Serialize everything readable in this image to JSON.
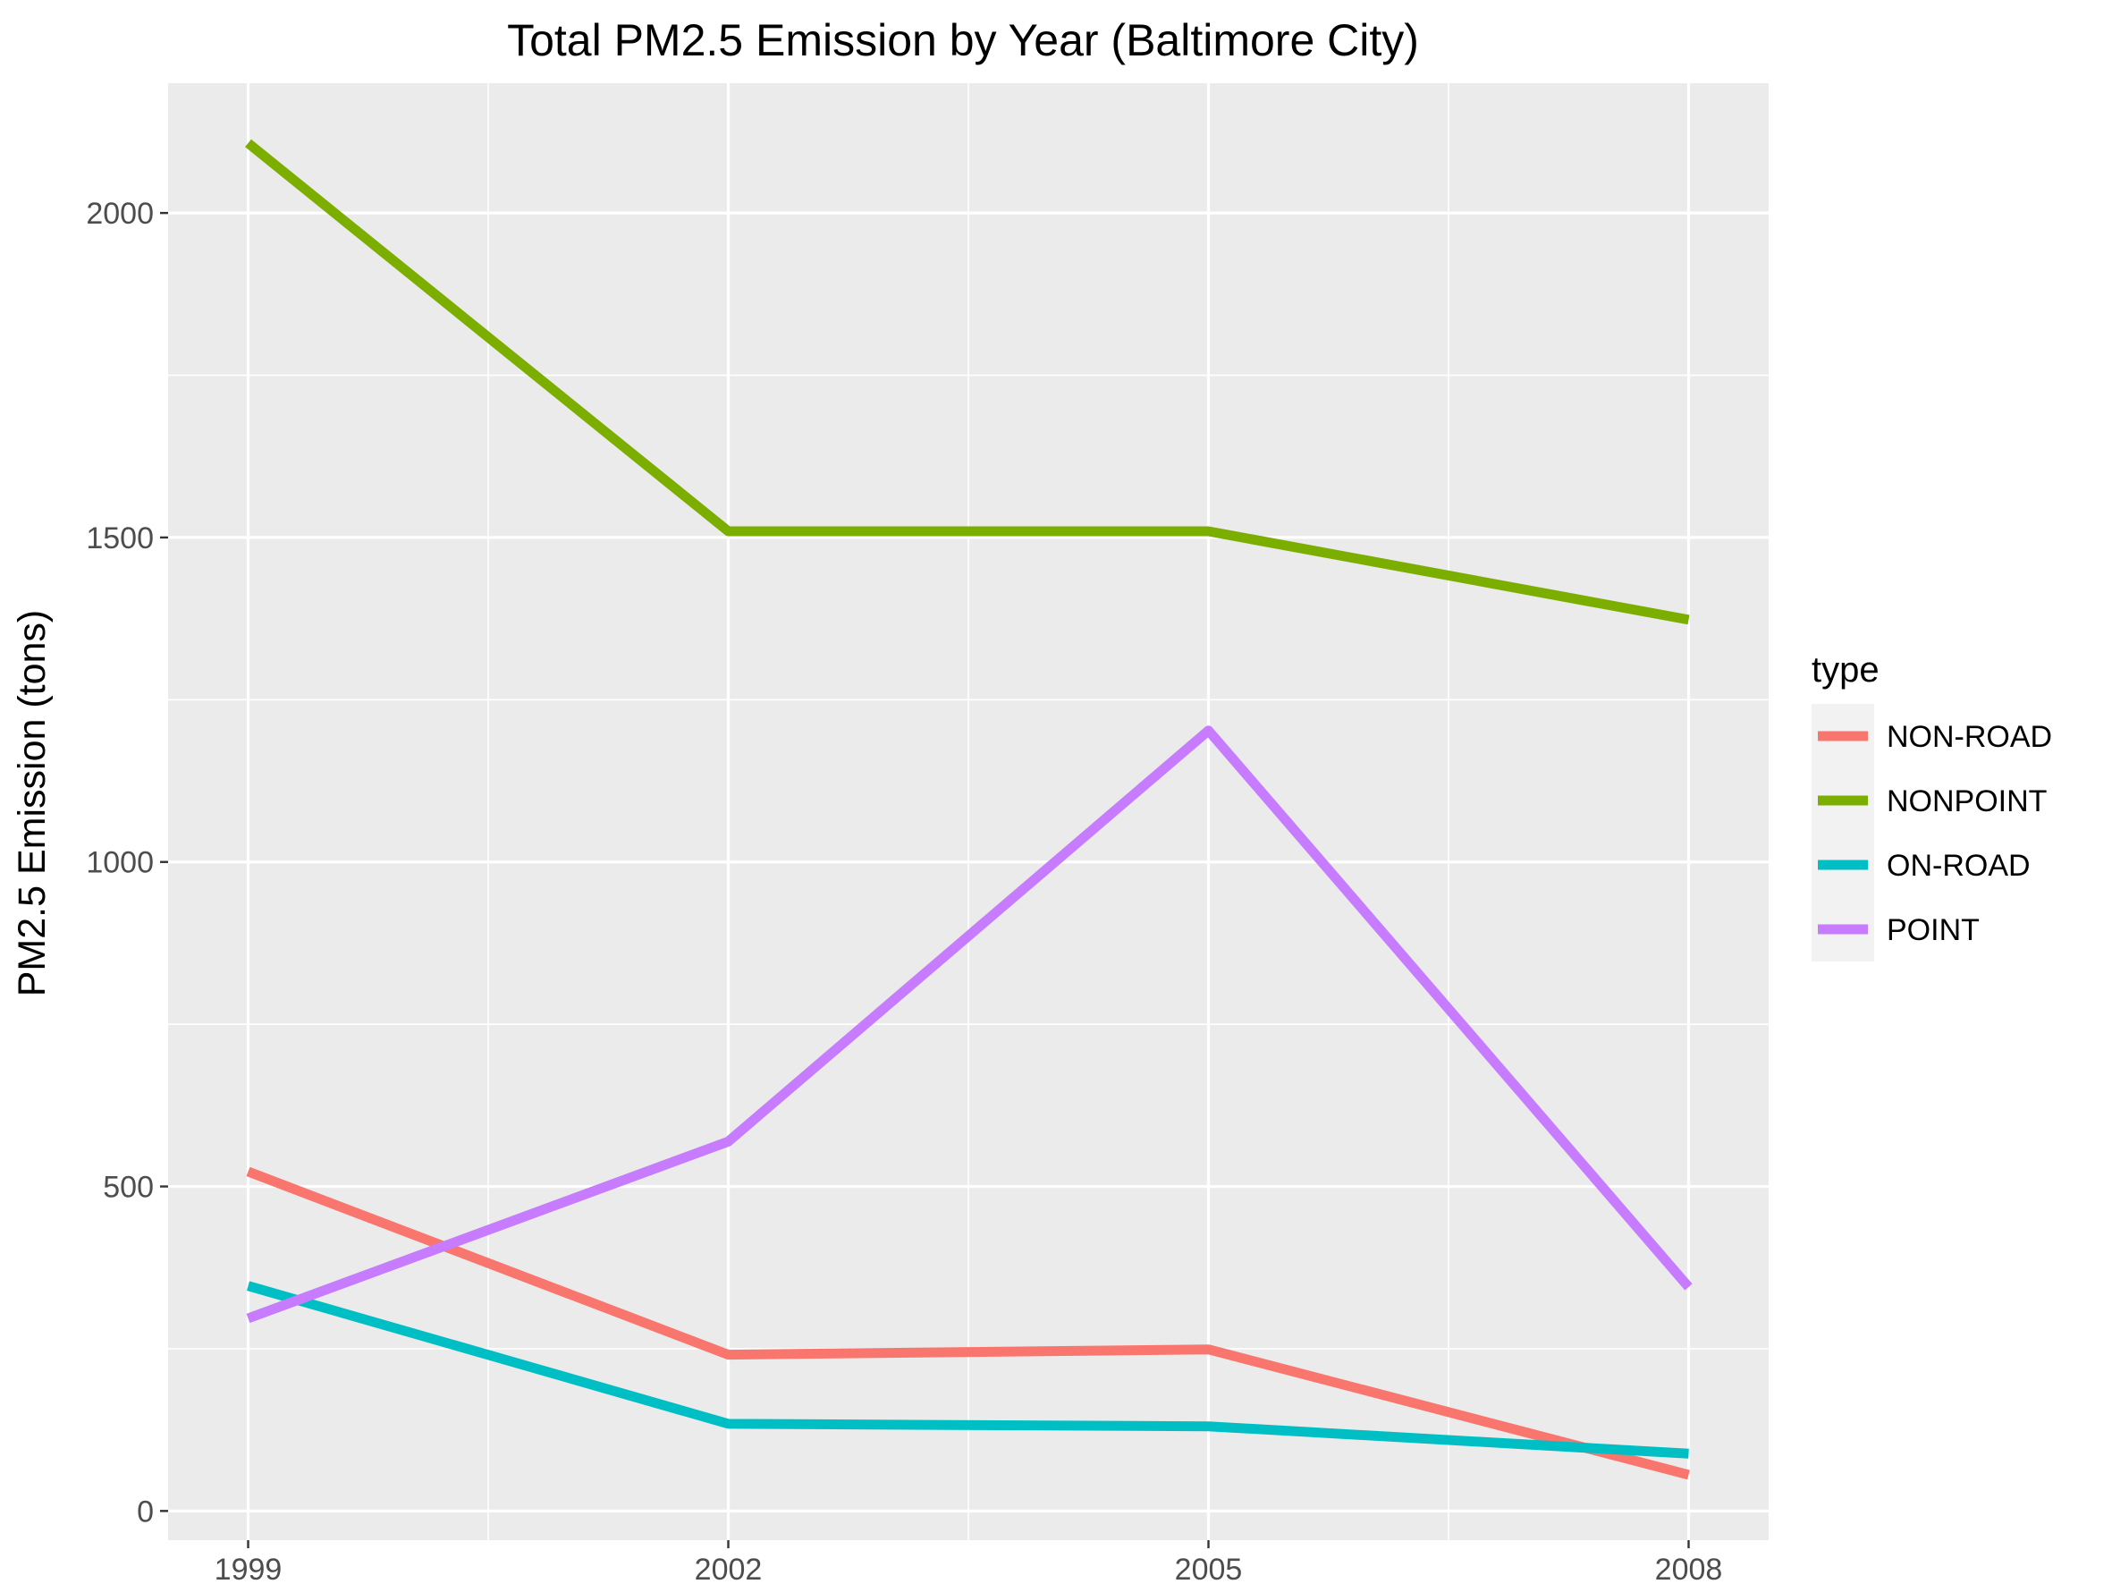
{
  "chart_data": {
    "type": "line",
    "title": "Total PM2.5 Emission by Year (Baltimore City)",
    "xlabel": "",
    "ylabel": "PM2.5 Emission (tons)",
    "x": [
      1999,
      2002,
      2005,
      2008
    ],
    "x_tick_labels": [
      "1999",
      "2002",
      "2005",
      "2008"
    ],
    "xlim": [
      1998.5,
      2008.5
    ],
    "y_ticks": [
      0,
      500,
      1000,
      1500,
      2000
    ],
    "y_tick_labels": [
      "0",
      "500",
      "1000",
      "1500",
      "2000"
    ],
    "ylim": [
      -45,
      2200
    ],
    "grid": true,
    "legend": {
      "title": "type",
      "position": "right"
    },
    "series": [
      {
        "name": "NON-ROAD",
        "color": "#F8766D",
        "values": [
          522.9,
          240.8,
          248.9,
          55.8
        ]
      },
      {
        "name": "NONPOINT",
        "color": "#7CAE00",
        "values": [
          2107.6,
          1509.5,
          1509.5,
          1373.2
        ]
      },
      {
        "name": "ON-ROAD",
        "color": "#00BFC4",
        "values": [
          346.8,
          134.3,
          130.4,
          88.3
        ]
      },
      {
        "name": "POINT",
        "color": "#C77CFF",
        "values": [
          296.8,
          569.3,
          1202.5,
          344.98
        ]
      }
    ]
  }
}
